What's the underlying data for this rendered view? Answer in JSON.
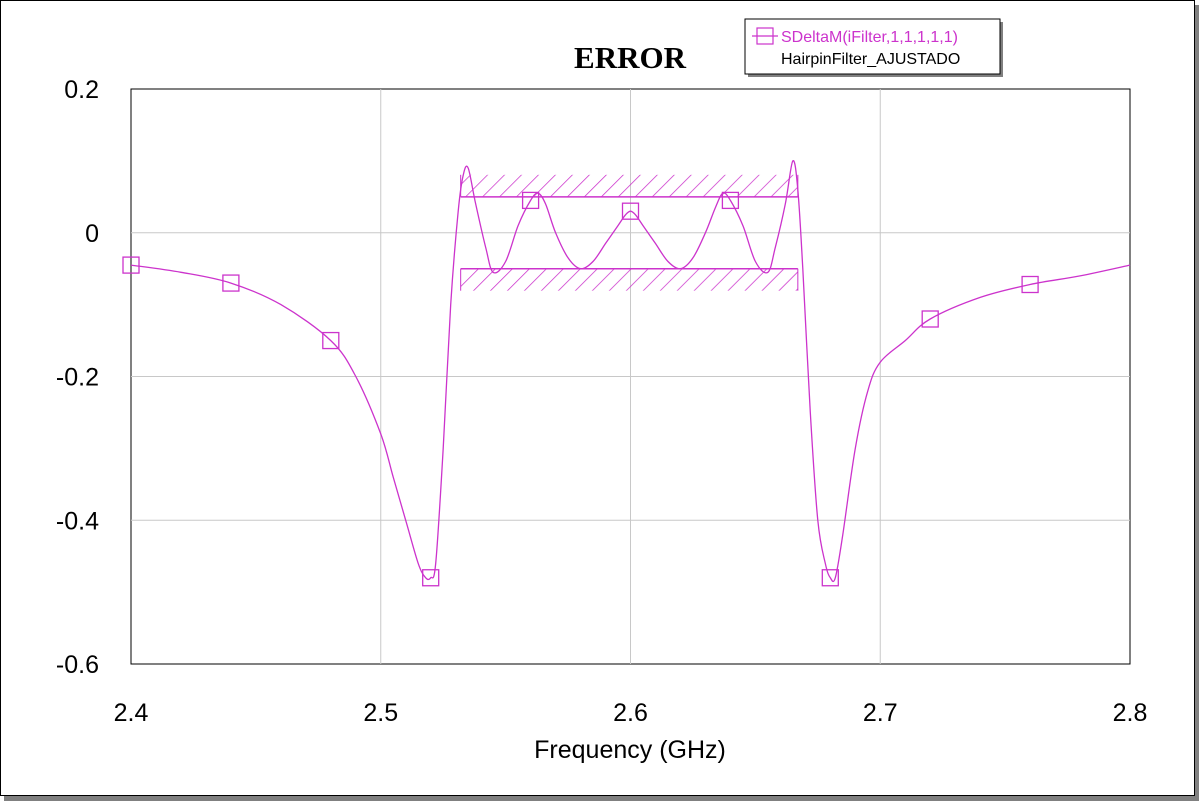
{
  "chart_data": {
    "type": "line",
    "title": "ERROR",
    "xlabel": "Frequency (GHz)",
    "ylabel": "",
    "xlim": [
      2.4,
      2.8
    ],
    "ylim": [
      -0.6,
      0.2
    ],
    "x_ticks": [
      "2.4",
      "2.5",
      "2.6",
      "2.7",
      "2.8"
    ],
    "x_tick_values": [
      2.4,
      2.5,
      2.6,
      2.7,
      2.8
    ],
    "y_ticks": [
      "0.2",
      "0",
      "-0.2",
      "-0.4",
      "-0.6"
    ],
    "y_tick_values": [
      0.2,
      0,
      -0.2,
      -0.4,
      -0.6
    ],
    "grid": true,
    "legend_position": "top-right",
    "legend": {
      "entries": [
        "SDeltaM(iFilter,1,1,1,1,1)",
        "HairpinFilter_AJUSTADO"
      ]
    },
    "colors": {
      "series": "#cc33cc",
      "grid": "#c8c8c8",
      "axis": "#000000"
    },
    "series": [
      {
        "name": "SDeltaM(iFilter,1,1,1,1,1)",
        "marker": "square",
        "x": [
          2.4,
          2.42,
          2.44,
          2.46,
          2.48,
          2.49,
          2.5,
          2.505,
          2.51,
          2.515,
          2.518,
          2.52,
          2.522,
          2.525,
          2.528,
          2.531,
          2.533,
          2.535,
          2.538,
          2.542,
          2.545,
          2.55,
          2.555,
          2.56,
          2.563,
          2.566,
          2.57,
          2.575,
          2.58,
          2.585,
          2.59,
          2.595,
          2.598,
          2.6,
          2.602,
          2.605,
          2.61,
          2.615,
          2.62,
          2.625,
          2.63,
          2.634,
          2.637,
          2.64,
          2.645,
          2.65,
          2.655,
          2.658,
          2.662,
          2.665,
          2.667,
          2.669,
          2.672,
          2.675,
          2.678,
          2.68,
          2.682,
          2.685,
          2.69,
          2.695,
          2.7,
          2.71,
          2.72,
          2.74,
          2.76,
          2.78,
          2.8
        ],
        "y": [
          -0.045,
          -0.055,
          -0.07,
          -0.1,
          -0.15,
          -0.2,
          -0.28,
          -0.34,
          -0.4,
          -0.46,
          -0.48,
          -0.48,
          -0.46,
          -0.3,
          -0.1,
          0.03,
          0.08,
          0.09,
          0.04,
          -0.02,
          -0.055,
          -0.04,
          0.01,
          0.045,
          0.055,
          0.04,
          0.0,
          -0.035,
          -0.05,
          -0.04,
          -0.015,
          0.01,
          0.025,
          0.03,
          0.025,
          0.01,
          -0.015,
          -0.04,
          -0.05,
          -0.035,
          0.0,
          0.035,
          0.055,
          0.045,
          0.01,
          -0.04,
          -0.055,
          -0.02,
          0.04,
          0.1,
          0.06,
          -0.05,
          -0.25,
          -0.4,
          -0.46,
          -0.48,
          -0.48,
          -0.42,
          -0.3,
          -0.22,
          -0.18,
          -0.15,
          -0.12,
          -0.09,
          -0.072,
          -0.06,
          -0.045
        ],
        "marker_x": [
          2.4,
          2.44,
          2.48,
          2.52,
          2.56,
          2.6,
          2.64,
          2.68,
          2.72,
          2.76
        ]
      }
    ],
    "goals": [
      {
        "x_range": [
          2.532,
          2.667
        ],
        "y": 0.05,
        "hatch": "above"
      },
      {
        "x_range": [
          2.532,
          2.667
        ],
        "y": -0.05,
        "hatch": "below"
      }
    ]
  }
}
